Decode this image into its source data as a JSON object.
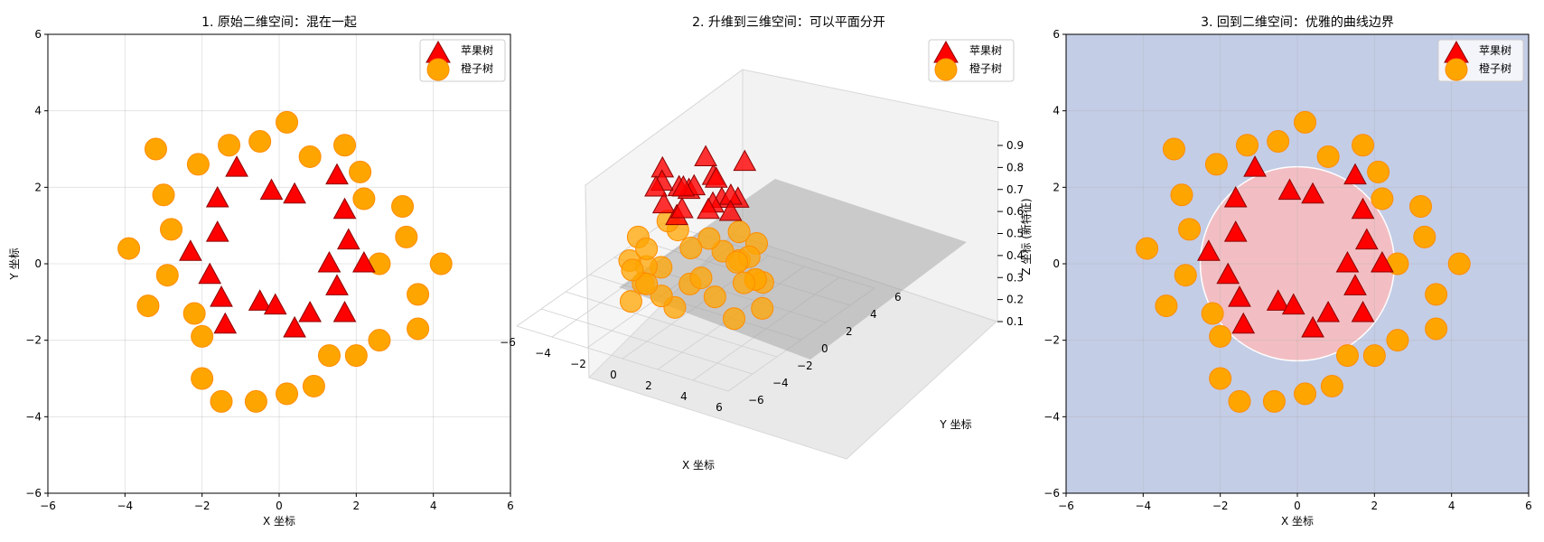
{
  "chart_data": [
    {
      "type": "scatter",
      "title": "1. 原始二维空间：混在一起",
      "xlabel": "X 坐标",
      "ylabel": "Y 坐标",
      "xlim": [
        -6,
        6
      ],
      "ylim": [
        -6,
        6
      ],
      "xticks": [
        "−6",
        "−4",
        "−2",
        "0",
        "2",
        "4",
        "6"
      ],
      "yticks": [
        "−6",
        "−4",
        "−2",
        "0",
        "2",
        "4",
        "6"
      ],
      "grid": true,
      "legend": "top-right",
      "series": [
        {
          "name": "苹果树",
          "marker": "triangle",
          "color": "#ff0000",
          "x": [
            0.4,
            1.7,
            -0.2,
            -1.1,
            1.5,
            -1.6,
            -1.6,
            1.8,
            -2.3,
            1.3,
            -1.8,
            2.2,
            1.5,
            -1.5,
            0.8,
            -0.5,
            -0.1,
            1.7,
            -1.4,
            0.4
          ],
          "y": [
            1.8,
            1.4,
            1.9,
            2.5,
            2.3,
            1.7,
            0.8,
            0.6,
            0.3,
            0.0,
            -0.3,
            0.0,
            -0.6,
            -0.9,
            -1.3,
            -1.0,
            -1.1,
            -1.3,
            -1.6,
            -1.7
          ]
        },
        {
          "name": "橙子树",
          "marker": "circle",
          "color": "#ffa500",
          "x": [
            0.2,
            -0.5,
            -1.3,
            1.7,
            0.8,
            2.1,
            -2.1,
            -3.2,
            2.2,
            -3.0,
            -2.8,
            3.2,
            3.3,
            -3.9,
            2.6,
            4.2,
            -2.9,
            -3.4,
            3.6,
            -2.2,
            3.6,
            -2.0,
            2.6,
            1.3,
            2.0,
            -2.0,
            0.9,
            0.2,
            -0.6,
            -1.5
          ],
          "y": [
            3.7,
            3.2,
            3.1,
            3.1,
            2.8,
            2.4,
            2.6,
            3.0,
            1.7,
            1.8,
            0.9,
            1.5,
            0.7,
            0.4,
            0.0,
            0.0,
            -0.3,
            -1.1,
            -0.8,
            -1.3,
            -1.7,
            -1.9,
            -2.0,
            -2.4,
            -2.4,
            -3.0,
            -3.2,
            -3.4,
            -3.6,
            -3.6
          ]
        }
      ]
    },
    {
      "type": "scatter3d",
      "title": "2. 升维到三维空间：可以平面分开",
      "xlabel": "X 坐标",
      "ylabel": "Y 坐标",
      "zlabel": "Z 坐标 (新特征)",
      "xlim": [
        -6,
        6
      ],
      "ylim": [
        -6,
        6
      ],
      "zlim": [
        0.1,
        0.9
      ],
      "xticks": [
        "−6",
        "−4",
        "−2",
        "0",
        "2",
        "4",
        "6"
      ],
      "yticks": [
        "−6",
        "−4",
        "−2",
        "0",
        "2",
        "4",
        "6"
      ],
      "zticks": [
        "0.1",
        "0.2",
        "0.3",
        "0.4",
        "0.5",
        "0.6",
        "0.7",
        "0.8",
        "0.9"
      ],
      "separating_plane_z": 0.5,
      "legend": "top-right",
      "series_names": [
        "苹果树",
        "橙子树"
      ],
      "z_rule": "苹果树 ≈ 0.6–0.8, 橙子树 ≈ 0.2–0.4 (estimated)"
    },
    {
      "type": "scatter",
      "title": "3. 回到二维空间：优雅的曲线边界",
      "xlabel": "X 坐标",
      "ylabel": "Y 坐标",
      "xlim": [
        -6,
        6
      ],
      "ylim": [
        -6,
        6
      ],
      "xticks": [
        "−6",
        "−4",
        "−2",
        "0",
        "2",
        "4",
        "6"
      ],
      "yticks": [
        "−6",
        "−4",
        "−2",
        "0",
        "2",
        "4",
        "6"
      ],
      "grid": true,
      "legend": "top-right",
      "background_region_color": "#c3cde6",
      "inner_region_color": "#f2bec3",
      "boundary_radius": 2.5,
      "series_names": [
        "苹果树",
        "橙子树"
      ]
    }
  ]
}
